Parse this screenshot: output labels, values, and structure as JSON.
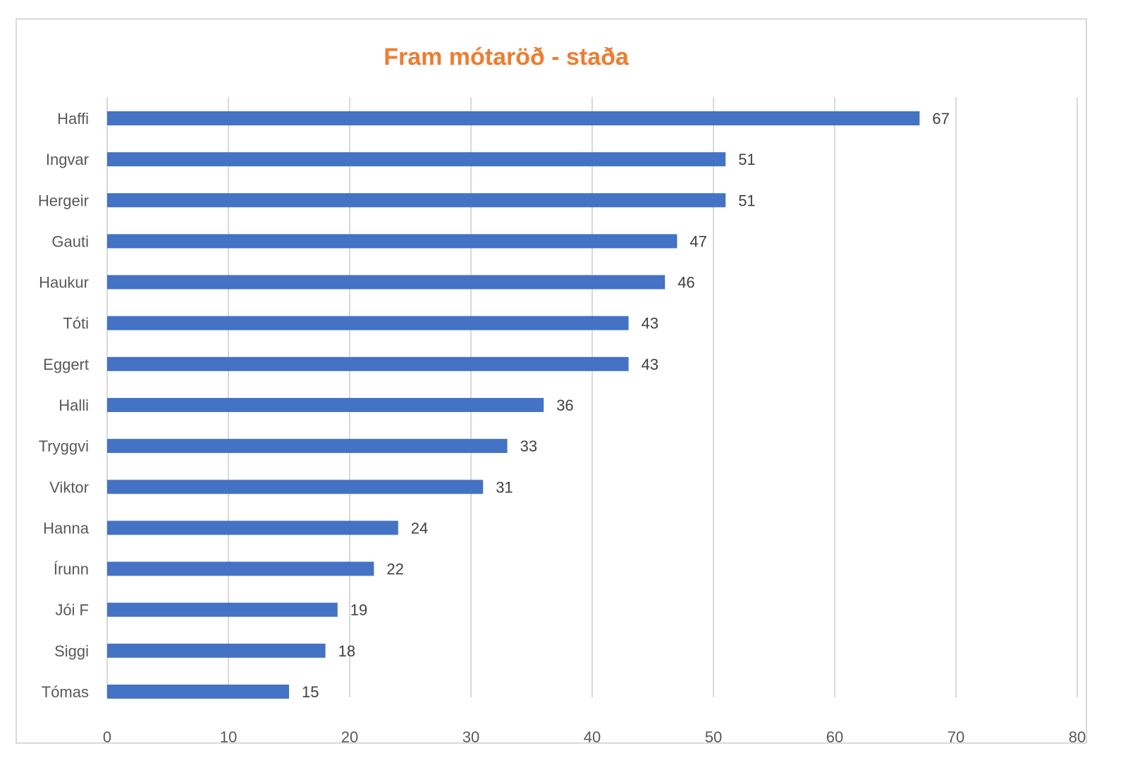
{
  "chart_data": {
    "type": "bar",
    "orientation": "horizontal",
    "title": "Fram mótaröð - staða",
    "categories": [
      "Haffi",
      "Ingvar",
      "Hergeir",
      "Gauti",
      "Haukur",
      "Tóti",
      "Eggert",
      "Halli",
      "Tryggvi",
      "Viktor",
      "Hanna",
      "Írunn",
      "Jói F",
      "Siggi",
      "Tómas"
    ],
    "values": [
      67,
      51,
      51,
      47,
      46,
      43,
      43,
      36,
      33,
      31,
      24,
      22,
      19,
      18,
      15
    ],
    "xlim": [
      0,
      80
    ],
    "xticks": [
      0,
      10,
      20,
      30,
      40,
      50,
      60,
      70,
      80
    ],
    "grid": "vertical",
    "data_labels": true,
    "colors": {
      "bar": "#4472c4",
      "title": "#ed7d31",
      "grid": "#d9d9d9"
    }
  }
}
